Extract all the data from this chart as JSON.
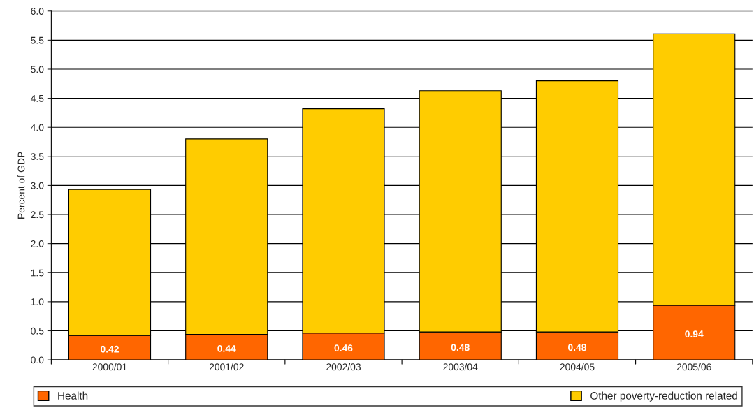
{
  "chart_data": {
    "type": "bar",
    "stacked": true,
    "ylabel": "Percent of GDP",
    "categories": [
      "2000/01",
      "2001/02",
      "2002/03",
      "2003/04",
      "2004/05",
      "2005/06"
    ],
    "series": [
      {
        "name": "Health",
        "color": "#ff6600",
        "values": [
          0.42,
          0.44,
          0.46,
          0.48,
          0.48,
          0.94
        ],
        "value_labels": [
          "0.42",
          "0.44",
          "0.46",
          "0.48",
          "0.48",
          "0.94"
        ]
      },
      {
        "name": "Other poverty-reduction related",
        "color": "#ffcc00",
        "values": [
          2.51,
          3.36,
          3.86,
          4.15,
          4.32,
          4.67
        ]
      }
    ],
    "ylim": [
      0,
      6
    ],
    "yticks": [
      "0.0",
      "0.5",
      "1.0",
      "1.5",
      "2.0",
      "2.5",
      "3.0",
      "3.5",
      "4.0",
      "4.5",
      "5.0",
      "5.5",
      "6.0"
    ],
    "grid": "y",
    "legend": "bottom"
  }
}
